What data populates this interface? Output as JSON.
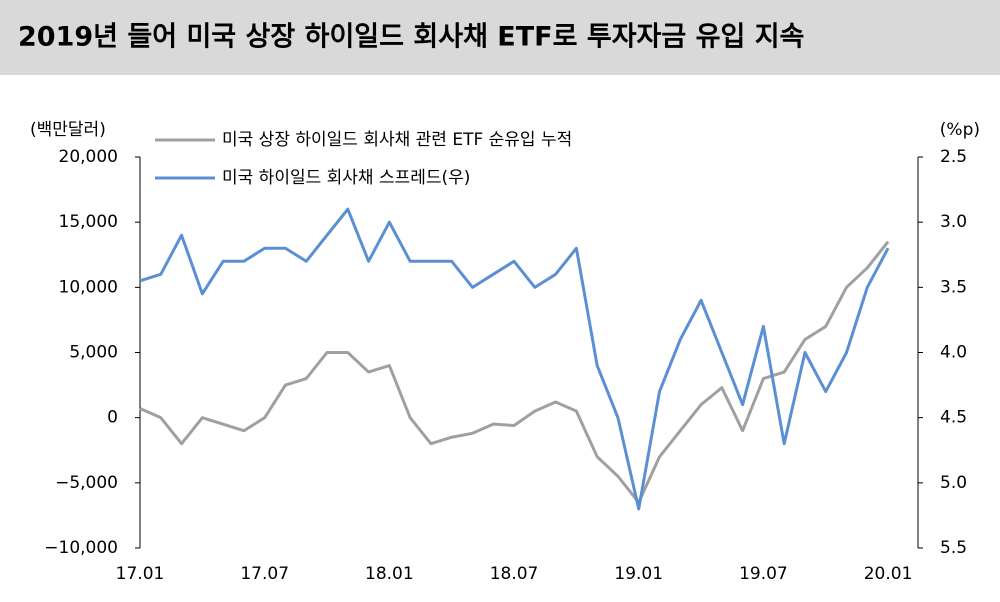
{
  "chart_data": {
    "type": "line",
    "title": "2019년 들어 미국 상장 하이일드 회사채 ETF로 투자자금 유입 지속",
    "y_label": "(백만달러)",
    "y2_label": "(%p)",
    "categories": [
      "17.01",
      null,
      null,
      null,
      null,
      null,
      "17.07",
      null,
      null,
      null,
      null,
      null,
      "18.01",
      null,
      null,
      null,
      null,
      null,
      "18.07",
      null,
      null,
      null,
      null,
      null,
      "19.01",
      null,
      null,
      null,
      null,
      null,
      "19.07",
      null,
      null,
      null,
      null,
      null,
      "20.01"
    ],
    "series": [
      {
        "name": "미국 상장 하이일드 회사채 관련 ETF 순유입 누적",
        "color": "#a0a0a0",
        "axis": "y",
        "values": [
          700,
          0,
          -2000,
          0,
          -500,
          -1000,
          0,
          2500,
          3000,
          5000,
          5000,
          3500,
          4000,
          0,
          -2000,
          -1500,
          -1200,
          -500,
          -600,
          500,
          1200,
          500,
          -3000,
          -4500,
          -6500,
          -3000,
          -1000,
          1000,
          2300,
          -1000,
          3000,
          3500,
          6000,
          7000,
          10000,
          11500,
          13500
        ]
      },
      {
        "name": "미국 하이일드 회사채 스프레드(우)",
        "color": "#5b8fd4",
        "axis": "y2",
        "values": [
          3.45,
          3.4,
          3.1,
          3.55,
          3.3,
          3.3,
          3.2,
          3.2,
          3.3,
          3.1,
          2.9,
          3.3,
          3.0,
          3.3,
          3.3,
          3.3,
          3.5,
          3.4,
          3.3,
          3.5,
          3.4,
          3.2,
          4.1,
          4.5,
          5.2,
          4.3,
          3.9,
          3.6,
          4.0,
          4.4,
          3.8,
          4.7,
          4.0,
          4.3,
          4.0,
          3.5,
          3.2
        ]
      }
    ],
    "ylim": [
      -10000,
      20000
    ],
    "yticks": [
      {
        "value": -10000,
        "label": "−10,000"
      },
      {
        "value": -5000,
        "label": "−5,000"
      },
      0,
      {
        "value": 5000,
        "label": "5,000"
      },
      {
        "value": 10000,
        "label": "10,000"
      },
      {
        "value": 15000,
        "label": "15,000"
      },
      {
        "value": 20000,
        "label": "20,000"
      }
    ],
    "y2lim": [
      5.5,
      2.5
    ],
    "y2ticks": [
      5.5,
      {
        "value": 5,
        "label": "5.0"
      },
      4.5,
      {
        "value": 4,
        "label": "4.0"
      },
      3.5,
      {
        "value": 3,
        "label": "3.0"
      },
      2.5
    ],
    "grid": false
  }
}
